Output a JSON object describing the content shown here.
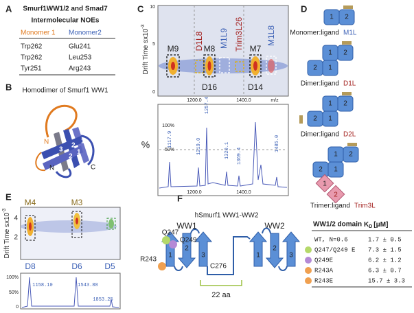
{
  "panel_a": {
    "letter": "A",
    "title": "Smurf1WW1/2 and Smad7",
    "subtitle": "Intermolecular NOEs",
    "headers": [
      "Monomer 1",
      "Monomer2"
    ],
    "rows": [
      [
        "Trp262",
        "Glu241"
      ],
      [
        "Trp262",
        "Leu253"
      ],
      [
        "Tyr251",
        "Arg243"
      ]
    ]
  },
  "panel_b": {
    "letter": "B",
    "title": "Homodimer  of Smurf1 WW1",
    "labels": [
      "N",
      "C",
      "N",
      "3",
      "2",
      "1",
      "2",
      "1"
    ]
  },
  "panel_c": {
    "letter": "C",
    "y_label": "Drift Time sx10",
    "y_label_exp": "-3",
    "y_ticks": [
      "10",
      "5",
      "0"
    ],
    "top_labels": [
      "M9",
      "D1L8",
      "M8",
      "M1L9",
      "Trim3L26",
      "M7",
      "M1L8"
    ],
    "bottom_labels": [
      "D16",
      "D14"
    ],
    "x_ticks": [
      "1200.0",
      "1400.0",
      "m/z"
    ],
    "spectrum_y_label": "%",
    "spectrum_y_ticks": [
      "100%",
      "50%"
    ],
    "peaks": [
      "1117.9",
      "1219.0",
      "1257.4",
      "1320.1",
      "1369.4",
      "1485.0"
    ],
    "spectrum_x_ticks": [
      "1200.0",
      "1400.0"
    ]
  },
  "panel_d": {
    "letter": "D",
    "items": [
      {
        "label": "Monomer:ligand",
        "code": "M1L"
      },
      {
        "label": "Dimer:ligand",
        "code": "D1L"
      },
      {
        "label": "Dimer:ligand",
        "code": "D2L"
      },
      {
        "label": "Trimer:ligand",
        "code": "Trim3L"
      }
    ],
    "domains": [
      "1",
      "2"
    ]
  },
  "panel_e": {
    "letter": "E",
    "y_label": "Drift Time sx10",
    "y_label_exp": "-3",
    "top_labels": [
      "M4",
      "M3"
    ],
    "y_ticks": [
      "4",
      "2"
    ],
    "bottom_labels": [
      "D8",
      "D6",
      "D5"
    ],
    "spectrum_y_ticks": [
      "100%",
      "50%",
      "0"
    ],
    "peaks": [
      "1158.10",
      "1543.88",
      "1853.25"
    ]
  },
  "panel_f": {
    "letter": "F",
    "title": "hSmurf1 WW1-WW2",
    "domains": [
      "WW1",
      "WW2"
    ],
    "residues": [
      "Q247",
      "Q249",
      "R243",
      "C276"
    ],
    "linker": "22 aa",
    "strands": [
      "1",
      "2",
      "3"
    ],
    "table": {
      "header_domain": "WW1/2 domain",
      "header_k": "K",
      "header_sub": "D",
      "header_unit": "[μM]",
      "rows": [
        [
          "WT, N=0.6",
          "1.7 ± 0.5"
        ],
        [
          "Q247/Q249 E",
          "7.3 ± 1.5"
        ],
        [
          "Q249E",
          "6.2 ± 1.2"
        ],
        [
          "R243A",
          "6.3 ± 0.7"
        ],
        [
          "R243E",
          "15.7 ± 3.3"
        ]
      ]
    }
  }
}
